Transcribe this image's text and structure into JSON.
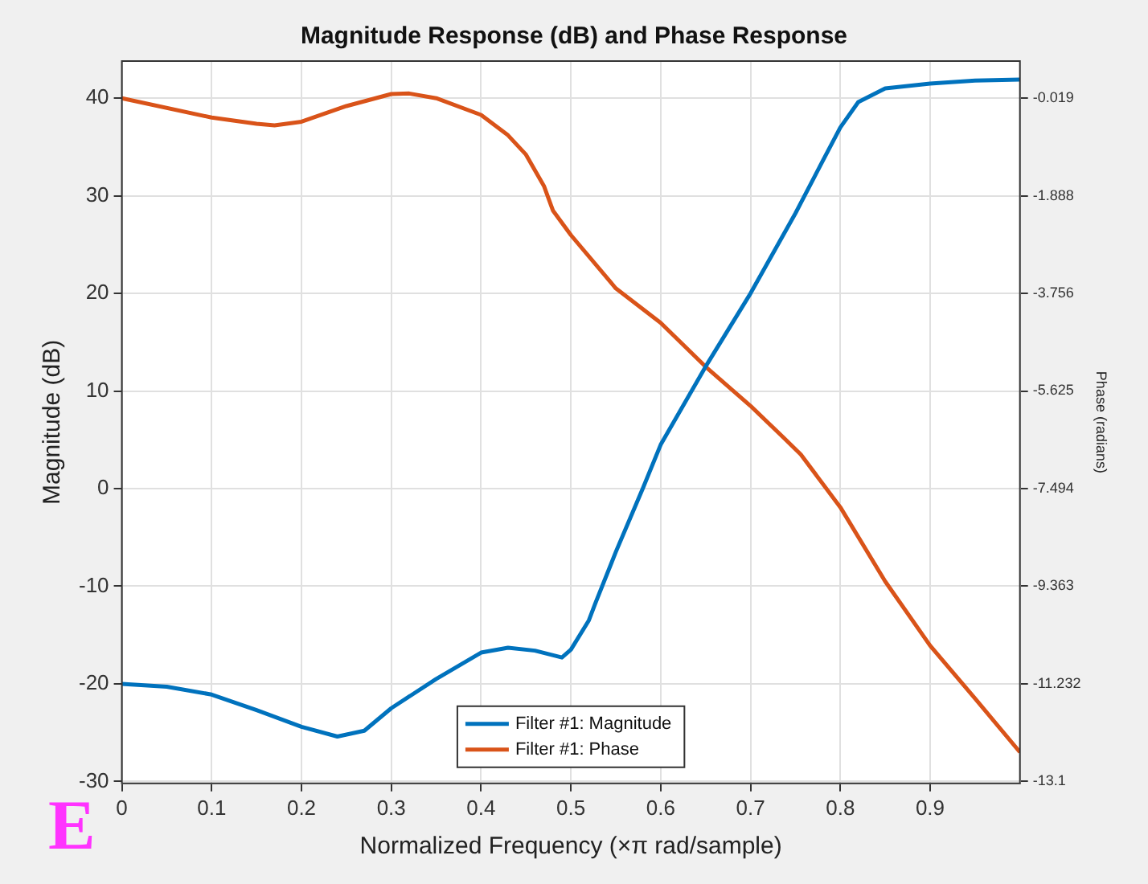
{
  "chart_data": {
    "type": "line",
    "title": "Magnitude Response (dB) and Phase Response",
    "xlabel": "Normalized Frequency (×π rad/sample)",
    "ylabel": "Magnitude (dB)",
    "y2label": "Phase (radians)",
    "xlim": [
      0,
      1
    ],
    "xticks": [
      0,
      0.1,
      0.2,
      0.3,
      0.4,
      0.5,
      0.6,
      0.7,
      0.8,
      0.9
    ],
    "ylim": [
      -30.2,
      43.8
    ],
    "yticks": [
      -30,
      -20,
      -10,
      0,
      10,
      20,
      30,
      40
    ],
    "y2lim": [
      -13.137,
      0.691
    ],
    "y2ticks": [
      -13.1,
      -11.232,
      -9.363,
      -7.494,
      -5.625,
      -3.756,
      -1.888,
      -0.019
    ],
    "grid": true,
    "legend": "bottom",
    "annotations": [
      "E"
    ],
    "series": [
      {
        "name": "Filter #1: Magnitude",
        "color": "#0072bd",
        "x": [
          0,
          0.05,
          0.1,
          0.15,
          0.2,
          0.24,
          0.27,
          0.3,
          0.35,
          0.4,
          0.43,
          0.46,
          0.49,
          0.5,
          0.52,
          0.527,
          0.55,
          0.58,
          0.6,
          0.65,
          0.7,
          0.75,
          0.78,
          0.8,
          0.82,
          0.85,
          0.9,
          0.95,
          1
        ],
        "values": [
          -20,
          -20.3,
          -21.1,
          -22.7,
          -24.4,
          -25.4,
          -24.8,
          -22.5,
          -19.5,
          -16.8,
          -16.3,
          -16.6,
          -17.3,
          -16.5,
          -13.5,
          -11.8,
          -6.5,
          0,
          4.5,
          12.5,
          20,
          28.2,
          33.5,
          37,
          39.6,
          41,
          41.5,
          41.8,
          41.9
        ]
      },
      {
        "name": "Filter #1: Phase",
        "color": "#d95319",
        "axis": "y2",
        "x": [
          0,
          0.1,
          0.15,
          0.17,
          0.2,
          0.25,
          0.3,
          0.32,
          0.35,
          0.4,
          0.43,
          0.45,
          0.47,
          0.48,
          0.5,
          0.55,
          0.6,
          0.65,
          0.7,
          0.737,
          0.756,
          0.8,
          0.85,
          0.9,
          0.95,
          1
        ],
        "values": [
          -0.02,
          -0.39,
          -0.51,
          -0.54,
          -0.47,
          -0.17,
          0.06,
          0.07,
          -0.02,
          -0.34,
          -0.73,
          -1.1,
          -1.7,
          -2.17,
          -2.64,
          -3.66,
          -4.32,
          -5.16,
          -5.91,
          -6.52,
          -6.84,
          -7.85,
          -9.27,
          -10.5,
          -11.51,
          -12.54
        ]
      }
    ]
  }
}
